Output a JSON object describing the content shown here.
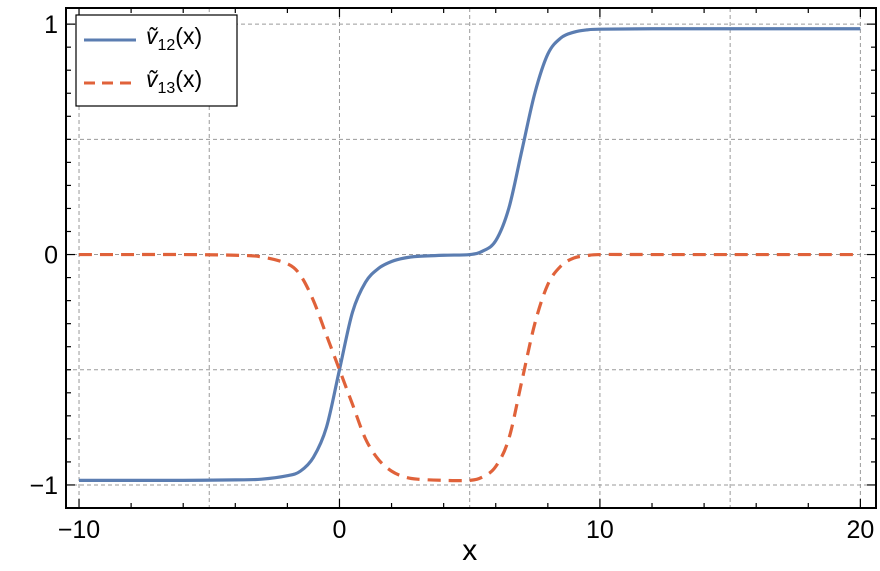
{
  "chart_data": {
    "type": "line",
    "title": "",
    "xlabel": "x",
    "ylabel": "",
    "xlim": [
      -10.5,
      20.6
    ],
    "ylim": [
      -1.1,
      1.07
    ],
    "grid": true,
    "legend_position": "top-left",
    "x_ticks": [
      -10,
      0,
      10,
      20
    ],
    "x_tick_labels": [
      "−10",
      "0",
      "10",
      "20"
    ],
    "y_ticks": [
      -1,
      0,
      1
    ],
    "y_tick_labels": [
      "−1",
      "0",
      "1"
    ],
    "x_minor_grid": [
      -5,
      5,
      15
    ],
    "y_minor_grid": [
      -0.5,
      0.5
    ],
    "x": [
      -10,
      -8,
      -6,
      -4,
      -3,
      -2,
      -1.5,
      -1,
      -0.5,
      0,
      0.5,
      1,
      1.5,
      2,
      2.5,
      3,
      4,
      5,
      5.5,
      6,
      6.5,
      7,
      7.5,
      8,
      8.5,
      9,
      9.5,
      10,
      12,
      15,
      18,
      20
    ],
    "series": [
      {
        "name": "ṽ12(x)",
        "name_main": "ṽ",
        "name_sub": "12",
        "name_suffix": "(x)",
        "color": "#5b7db1",
        "style": "solid",
        "values": [
          -0.98,
          -0.98,
          -0.98,
          -0.978,
          -0.975,
          -0.96,
          -0.94,
          -0.88,
          -0.75,
          -0.5,
          -0.25,
          -0.12,
          -0.06,
          -0.03,
          -0.015,
          -0.008,
          -0.003,
          0,
          0.015,
          0.06,
          0.2,
          0.45,
          0.7,
          0.87,
          0.94,
          0.965,
          0.975,
          0.978,
          0.98,
          0.98,
          0.98,
          0.98
        ]
      },
      {
        "name": "ṽ13(x)",
        "name_main": "ṽ",
        "name_sub": "13",
        "name_suffix": "(x)",
        "color": "#e0623a",
        "style": "dashed",
        "values": [
          0,
          0,
          0,
          -0.003,
          -0.01,
          -0.04,
          -0.09,
          -0.2,
          -0.35,
          -0.5,
          -0.65,
          -0.8,
          -0.89,
          -0.94,
          -0.965,
          -0.975,
          -0.98,
          -0.98,
          -0.965,
          -0.92,
          -0.8,
          -0.55,
          -0.3,
          -0.13,
          -0.05,
          -0.015,
          -0.005,
          0,
          0,
          0,
          0,
          0
        ]
      }
    ]
  }
}
